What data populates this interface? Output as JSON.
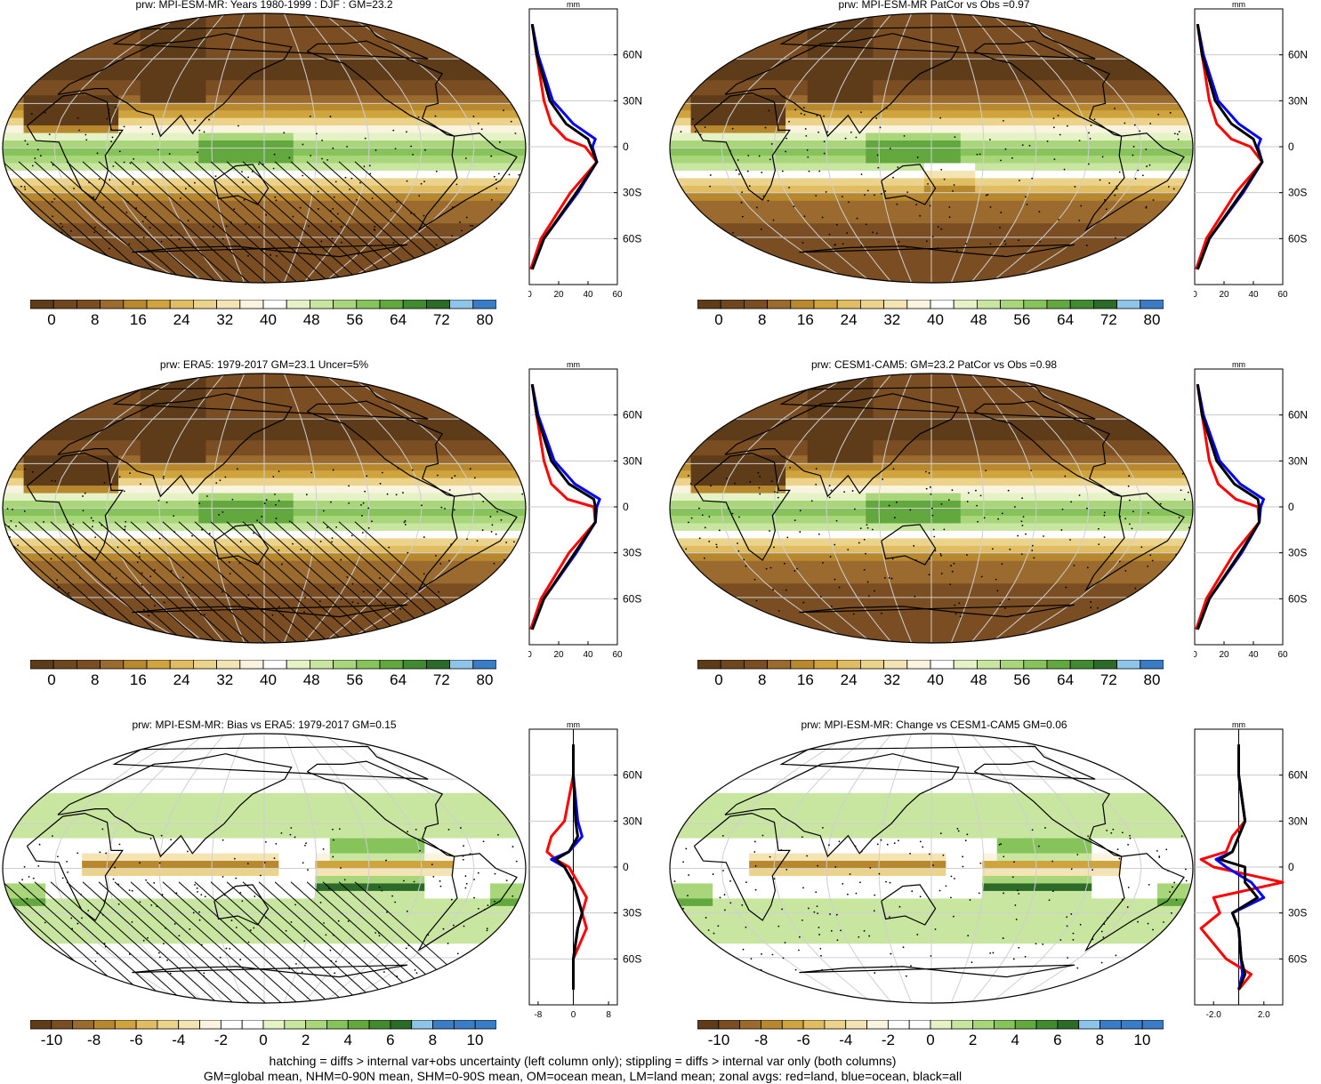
{
  "palettes": {
    "full": [
      "#5e3c1a",
      "#7a4e22",
      "#9a6a2e",
      "#b8882f",
      "#cfa33e",
      "#e0bd62",
      "#ecd38c",
      "#f4e4b4",
      "#faf3df",
      "#ffffff",
      "#e5f2c6",
      "#c8e6a0",
      "#a9d67a",
      "#86c35a",
      "#62a83e",
      "#428a30",
      "#2c6a2a",
      "#8fc4ea",
      "#3a7cc6"
    ],
    "land_line": "#ff0000",
    "ocean_line": "#0000ff",
    "all_line": "#000000"
  },
  "colorbar_ticks": {
    "abs": [
      "0",
      "8",
      "16",
      "24",
      "32",
      "40",
      "48",
      "56",
      "64",
      "72",
      "80"
    ],
    "diff": [
      "-10",
      "-8",
      "-6",
      "-4",
      "-2",
      "0",
      "2",
      "4",
      "6",
      "8",
      "10"
    ]
  },
  "panels": [
    {
      "title": "prw: MPI-ESM-MR: Years 1980-1999 : DJF : GM=23.2",
      "mode": "abs",
      "hatch": true,
      "zonal_ticks": [
        "0",
        "20",
        "40",
        "60"
      ]
    },
    {
      "title": "prw: MPI-ESM-MR PatCor vs Obs =0.97",
      "mode": "abs",
      "hatch": false,
      "zonal_ticks": [
        "0",
        "20",
        "40",
        "60"
      ]
    },
    {
      "title": "prw: ERA5: 1979-2017 GM=23.1 Uncer=5%",
      "mode": "abs",
      "hatch": true,
      "zonal_ticks": [
        "0",
        "20",
        "40",
        "60"
      ]
    },
    {
      "title": "prw: CESM1-CAM5: GM=23.2 PatCor vs Obs =0.98",
      "mode": "abs",
      "hatch": false,
      "zonal_ticks": [
        "0",
        "20",
        "40",
        "60"
      ]
    },
    {
      "title": "prw: MPI-ESM-MR: Bias vs ERA5: 1979-2017 GM=0.15",
      "mode": "diff",
      "hatch": true,
      "zonal_ticks": [
        "-8",
        "0",
        "8"
      ]
    },
    {
      "title": "prw: MPI-ESM-MR: Change vs CESM1-CAM5 GM=0.06",
      "mode": "diff",
      "hatch": false,
      "zonal_ticks": [
        "-2.0",
        "2.0"
      ]
    }
  ],
  "zonal_unit": "mm",
  "lat_labels": [
    "60N",
    "30N",
    "0",
    "30S",
    "60S"
  ],
  "footer": {
    "line1": "hatching = diffs > internal var+obs uncertainty (left column only); stippling = diffs > internal var only (both columns)",
    "line2": "GM=global mean, NHM=0-90N mean, SHM=0-90S mean, OM=ocean mean, LM=land mean; zonal avgs: red=land, blue=ocean, black=all"
  },
  "chart_data": [
    {
      "type": "heatmap",
      "title": "prw: MPI-ESM-MR: Years 1980-1999 : DJF : GM=23.2",
      "colorbar": {
        "min": 0,
        "max": 80,
        "step": 4
      },
      "zonal_mean": {
        "unit": "mm",
        "xlim": [
          0,
          60
        ],
        "lat": [
          80,
          60,
          30,
          15,
          5,
          0,
          -10,
          -30,
          -60,
          -80
        ],
        "all": [
          2,
          5,
          14,
          25,
          40,
          42,
          46,
          32,
          10,
          2
        ],
        "land": [
          2,
          5,
          10,
          15,
          25,
          38,
          46,
          28,
          8,
          1
        ],
        "ocean": [
          2,
          6,
          16,
          30,
          45,
          43,
          46,
          33,
          10,
          2
        ]
      }
    },
    {
      "type": "heatmap",
      "title": "prw: MPI-ESM-MR PatCor vs Obs =0.97",
      "colorbar": {
        "min": 0,
        "max": 80,
        "step": 4
      },
      "zonal_mean": {
        "unit": "mm",
        "xlim": [
          0,
          60
        ],
        "lat": [
          80,
          60,
          30,
          15,
          5,
          0,
          -10,
          -30,
          -60,
          -80
        ],
        "all": [
          2,
          5,
          14,
          25,
          40,
          42,
          46,
          32,
          10,
          2
        ],
        "land": [
          2,
          5,
          10,
          15,
          25,
          38,
          46,
          28,
          8,
          1
        ],
        "ocean": [
          2,
          6,
          16,
          30,
          45,
          43,
          46,
          33,
          10,
          2
        ]
      }
    },
    {
      "type": "heatmap",
      "title": "prw: ERA5: 1979-2017 GM=23.1 Uncer=5%",
      "colorbar": {
        "min": 0,
        "max": 80,
        "step": 4
      },
      "zonal_mean": {
        "unit": "mm",
        "xlim": [
          0,
          60
        ],
        "lat": [
          80,
          60,
          30,
          15,
          5,
          0,
          -10,
          -30,
          -60,
          -80
        ],
        "all": [
          2,
          5,
          15,
          27,
          44,
          45,
          45,
          31,
          10,
          2
        ],
        "land": [
          2,
          5,
          10,
          15,
          26,
          44,
          45,
          27,
          8,
          1
        ],
        "ocean": [
          2,
          6,
          17,
          31,
          48,
          46,
          45,
          32,
          10,
          2
        ]
      }
    },
    {
      "type": "heatmap",
      "title": "prw: CESM1-CAM5: GM=23.2 PatCor vs Obs =0.98",
      "colorbar": {
        "min": 0,
        "max": 80,
        "step": 4
      },
      "zonal_mean": {
        "unit": "mm",
        "xlim": [
          0,
          60
        ],
        "lat": [
          80,
          60,
          30,
          15,
          5,
          0,
          -10,
          -30,
          -60,
          -80
        ],
        "all": [
          2,
          5,
          15,
          27,
          43,
          44,
          44,
          31,
          10,
          2
        ],
        "land": [
          2,
          5,
          10,
          16,
          28,
          43,
          44,
          27,
          8,
          1
        ],
        "ocean": [
          2,
          6,
          17,
          31,
          47,
          45,
          44,
          32,
          10,
          2
        ]
      }
    },
    {
      "type": "heatmap",
      "title": "prw: MPI-ESM-MR: Bias vs ERA5: 1979-2017 GM=0.15",
      "colorbar": {
        "min": -10,
        "max": 10,
        "step": 1
      },
      "zonal_mean": {
        "unit": "mm",
        "xlim": [
          -10,
          10
        ],
        "lat": [
          80,
          60,
          30,
          20,
          10,
          5,
          0,
          -10,
          -20,
          -30,
          -40,
          -60,
          -80
        ],
        "all": [
          0,
          0,
          0.5,
          1,
          -1,
          -4,
          -2,
          0,
          1,
          2,
          1,
          0,
          0
        ],
        "land": [
          0,
          0,
          -2,
          -5,
          -6,
          -4,
          -1,
          1,
          3,
          2,
          3,
          0,
          0
        ],
        "ocean": [
          0,
          0,
          1,
          2,
          -1,
          -5,
          -2,
          0,
          1,
          2,
          1,
          0,
          0
        ]
      }
    },
    {
      "type": "heatmap",
      "title": "prw: MPI-ESM-MR: Change vs CESM1-CAM5 GM=0.06",
      "colorbar": {
        "min": -10,
        "max": 10,
        "step": 1
      },
      "zonal_mean": {
        "unit": "mm",
        "xlim": [
          -3.5,
          3.5
        ],
        "lat": [
          80,
          60,
          30,
          20,
          10,
          5,
          0,
          -10,
          -20,
          -30,
          -40,
          -60,
          -70,
          -80
        ],
        "all": [
          0,
          0,
          0.5,
          0,
          -0.5,
          -1.5,
          0.5,
          0.5,
          1.5,
          -0.5,
          0,
          0.2,
          0.5,
          0
        ],
        "land": [
          0,
          0,
          0.5,
          -0.5,
          -1,
          -3,
          -2,
          3.5,
          -2,
          -1.5,
          -3,
          -1,
          1,
          0
        ],
        "ocean": [
          0,
          0,
          0.5,
          0,
          -0.5,
          -1.8,
          -1,
          1,
          2,
          -0.5,
          0,
          0.2,
          0.3,
          0
        ]
      }
    }
  ]
}
